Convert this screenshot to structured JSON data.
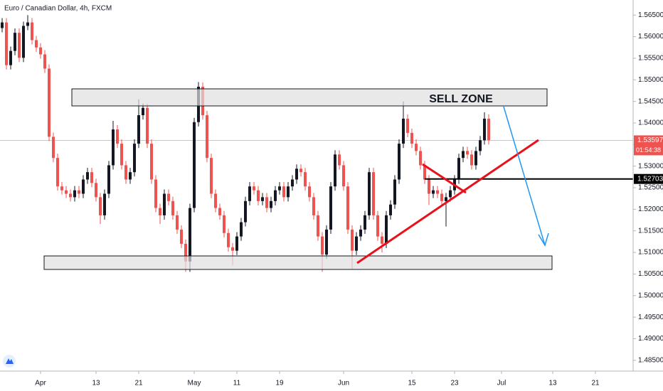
{
  "chart_data": {
    "type": "candlestick",
    "title": "Euro / Canadian Dollar, 4h, FXCM",
    "annotation": "SELL ZONE",
    "up_color": "#131722",
    "down_color": "#ef5350",
    "grid": false,
    "current_price": 1.53597,
    "countdown": "01:54:38",
    "horizontal_line": 1.52703,
    "ylim": [
      1.4825,
      1.5685
    ],
    "yticks": [
      {
        "value": 1.485,
        "label": "1.48500"
      },
      {
        "value": 1.49,
        "label": "1.49000"
      },
      {
        "value": 1.495,
        "label": "1.49500"
      },
      {
        "value": 1.5,
        "label": "1.50000"
      },
      {
        "value": 1.505,
        "label": "1.50500"
      },
      {
        "value": 1.51,
        "label": "1.51000"
      },
      {
        "value": 1.515,
        "label": "1.51500"
      },
      {
        "value": 1.52,
        "label": "1.52000"
      },
      {
        "value": 1.525,
        "label": "1.52500"
      },
      {
        "value": 1.53,
        "label": "1.53000"
      },
      {
        "value": 1.535,
        "label": "1.53500"
      },
      {
        "value": 1.54,
        "label": "1.54000"
      },
      {
        "value": 1.545,
        "label": "1.54500"
      },
      {
        "value": 1.55,
        "label": "1.55000"
      },
      {
        "value": 1.555,
        "label": "1.55500"
      },
      {
        "value": 1.56,
        "label": "1.56000"
      },
      {
        "value": 1.565,
        "label": "1.56500"
      }
    ],
    "categories": [
      null,
      null,
      null,
      null,
      null,
      null,
      null,
      null,
      null,
      "Apr",
      null,
      null,
      null,
      null,
      null,
      null,
      null,
      null,
      null,
      null,
      null,
      null,
      "13",
      null,
      null,
      null,
      null,
      null,
      null,
      null,
      null,
      null,
      "21",
      null,
      null,
      null,
      null,
      null,
      null,
      null,
      null,
      null,
      null,
      null,
      null,
      "May",
      null,
      null,
      null,
      null,
      null,
      null,
      null,
      null,
      null,
      "11",
      null,
      null,
      null,
      null,
      null,
      null,
      null,
      null,
      null,
      "19",
      null,
      null,
      null,
      null,
      null,
      null,
      null,
      null,
      null,
      null,
      null,
      null,
      null,
      null,
      "Jun",
      null,
      null,
      null,
      null,
      null,
      null,
      null,
      null,
      null,
      null,
      null,
      null,
      null,
      null,
      null,
      "15",
      null,
      null,
      null,
      null,
      null,
      null,
      null,
      null,
      null,
      "23",
      null,
      null,
      null,
      null,
      null,
      null,
      null,
      null,
      null,
      null,
      "Jul",
      null,
      null,
      null,
      null,
      null,
      null,
      null,
      null,
      null,
      null,
      null,
      "13",
      null,
      null,
      null,
      null,
      null,
      null,
      null,
      null,
      null,
      "21"
    ],
    "ohlc": [
      [
        1.562,
        1.5643,
        1.561,
        1.5633
      ],
      [
        1.5633,
        1.5643,
        1.5524,
        1.5534
      ],
      [
        1.5534,
        1.5577,
        1.5524,
        1.5567
      ],
      [
        1.5567,
        1.5619,
        1.5557,
        1.5609
      ],
      [
        1.5609,
        1.5619,
        1.5541,
        1.5551
      ],
      [
        1.5551,
        1.5635,
        1.5541,
        1.5625
      ],
      [
        1.5625,
        1.565,
        1.5615,
        1.5633
      ],
      [
        1.5633,
        1.5643,
        1.5582,
        1.5592
      ],
      [
        1.5592,
        1.5602,
        1.5565,
        1.5575
      ],
      [
        1.5575,
        1.5585,
        1.5549,
        1.5559
      ],
      [
        1.5559,
        1.5569,
        1.5516,
        1.5526
      ],
      [
        1.5526,
        1.5536,
        1.5358,
        1.5368
      ],
      [
        1.5368,
        1.5378,
        1.5309,
        1.5319
      ],
      [
        1.5319,
        1.5329,
        1.5243,
        1.5253
      ],
      [
        1.5253,
        1.5263,
        1.5234,
        1.5244
      ],
      [
        1.5244,
        1.5254,
        1.5226,
        1.5236
      ],
      [
        1.5236,
        1.5246,
        1.5218,
        1.5228
      ],
      [
        1.5228,
        1.5254,
        1.5218,
        1.5244
      ],
      [
        1.5244,
        1.5254,
        1.5226,
        1.5236
      ],
      [
        1.5236,
        1.5279,
        1.5226,
        1.5269
      ],
      [
        1.5269,
        1.5296,
        1.5259,
        1.5286
      ],
      [
        1.5286,
        1.5296,
        1.5251,
        1.5261
      ],
      [
        1.5261,
        1.5271,
        1.5218,
        1.5228
      ],
      [
        1.5228,
        1.5238,
        1.5166,
        1.5186
      ],
      [
        1.5186,
        1.5246,
        1.5176,
        1.5236
      ],
      [
        1.5236,
        1.5312,
        1.5226,
        1.5302
      ],
      [
        1.5302,
        1.5405,
        1.5292,
        1.5385
      ],
      [
        1.5385,
        1.5395,
        1.5342,
        1.5352
      ],
      [
        1.5352,
        1.5362,
        1.5292,
        1.5302
      ],
      [
        1.5302,
        1.5312,
        1.5259,
        1.5269
      ],
      [
        1.5269,
        1.5296,
        1.5259,
        1.5286
      ],
      [
        1.5286,
        1.5362,
        1.5276,
        1.5352
      ],
      [
        1.5352,
        1.5455,
        1.5342,
        1.5418
      ],
      [
        1.5418,
        1.5445,
        1.5408,
        1.5435
      ],
      [
        1.5435,
        1.5445,
        1.5342,
        1.5352
      ],
      [
        1.5352,
        1.5362,
        1.5259,
        1.5269
      ],
      [
        1.5269,
        1.5279,
        1.5193,
        1.5203
      ],
      [
        1.5203,
        1.5213,
        1.5166,
        1.5186
      ],
      [
        1.5186,
        1.5246,
        1.5176,
        1.5236
      ],
      [
        1.5236,
        1.5246,
        1.5209,
        1.5219
      ],
      [
        1.5219,
        1.5229,
        1.5176,
        1.5186
      ],
      [
        1.5186,
        1.5196,
        1.5143,
        1.5153
      ],
      [
        1.5153,
        1.5163,
        1.511,
        1.512
      ],
      [
        1.512,
        1.513,
        1.5055,
        1.5079
      ],
      [
        1.5079,
        1.5213,
        1.5055,
        1.5203
      ],
      [
        1.5203,
        1.5412,
        1.5193,
        1.5402
      ],
      [
        1.5402,
        1.5495,
        1.5392,
        1.5484
      ],
      [
        1.5484,
        1.5494,
        1.5408,
        1.5418
      ],
      [
        1.5418,
        1.5428,
        1.5309,
        1.5319
      ],
      [
        1.5319,
        1.5329,
        1.5226,
        1.5236
      ],
      [
        1.5236,
        1.5246,
        1.5193,
        1.5203
      ],
      [
        1.5203,
        1.5213,
        1.5176,
        1.5186
      ],
      [
        1.5186,
        1.5196,
        1.5135,
        1.5145
      ],
      [
        1.5145,
        1.5155,
        1.5102,
        1.5112
      ],
      [
        1.5112,
        1.5122,
        1.507,
        1.5104
      ],
      [
        1.5104,
        1.5147,
        1.5094,
        1.5137
      ],
      [
        1.5137,
        1.518,
        1.5127,
        1.517
      ],
      [
        1.517,
        1.5229,
        1.516,
        1.5219
      ],
      [
        1.5219,
        1.5263,
        1.5209,
        1.5253
      ],
      [
        1.5253,
        1.5263,
        1.5234,
        1.5244
      ],
      [
        1.5244,
        1.5254,
        1.5209,
        1.5219
      ],
      [
        1.5219,
        1.5238,
        1.5209,
        1.5228
      ],
      [
        1.5228,
        1.5238,
        1.5193,
        1.5203
      ],
      [
        1.5203,
        1.5229,
        1.5193,
        1.5219
      ],
      [
        1.5219,
        1.5254,
        1.5209,
        1.5244
      ],
      [
        1.5244,
        1.5263,
        1.5234,
        1.5253
      ],
      [
        1.5253,
        1.5263,
        1.5218,
        1.5228
      ],
      [
        1.5228,
        1.5263,
        1.5218,
        1.5253
      ],
      [
        1.5253,
        1.5279,
        1.5243,
        1.5269
      ],
      [
        1.5269,
        1.5304,
        1.5259,
        1.5294
      ],
      [
        1.5294,
        1.5304,
        1.5276,
        1.5286
      ],
      [
        1.5286,
        1.5296,
        1.5243,
        1.5253
      ],
      [
        1.5253,
        1.5263,
        1.5218,
        1.5228
      ],
      [
        1.5228,
        1.5238,
        1.5176,
        1.5186
      ],
      [
        1.5186,
        1.5196,
        1.5127,
        1.5137
      ],
      [
        1.5137,
        1.5147,
        1.5055,
        1.5095
      ],
      [
        1.5095,
        1.5163,
        1.5085,
        1.5153
      ],
      [
        1.5153,
        1.5263,
        1.5143,
        1.5253
      ],
      [
        1.5253,
        1.5337,
        1.5243,
        1.5327
      ],
      [
        1.5327,
        1.5337,
        1.5292,
        1.5302
      ],
      [
        1.5302,
        1.5312,
        1.5243,
        1.5253
      ],
      [
        1.5253,
        1.5263,
        1.5143,
        1.5153
      ],
      [
        1.5153,
        1.5163,
        1.506,
        1.5104
      ],
      [
        1.5104,
        1.5147,
        1.5094,
        1.5137
      ],
      [
        1.5137,
        1.5163,
        1.5127,
        1.5153
      ],
      [
        1.5153,
        1.5196,
        1.5143,
        1.5186
      ],
      [
        1.5186,
        1.5296,
        1.5176,
        1.5286
      ],
      [
        1.5286,
        1.5296,
        1.5176,
        1.5186
      ],
      [
        1.5186,
        1.5196,
        1.5127,
        1.5137
      ],
      [
        1.5137,
        1.5147,
        1.51,
        1.512
      ],
      [
        1.512,
        1.5196,
        1.511,
        1.5186
      ],
      [
        1.5186,
        1.5221,
        1.5176,
        1.5211
      ],
      [
        1.5211,
        1.5279,
        1.5201,
        1.5269
      ],
      [
        1.5269,
        1.5362,
        1.5259,
        1.5352
      ],
      [
        1.5352,
        1.545,
        1.5342,
        1.541
      ],
      [
        1.541,
        1.542,
        1.5367,
        1.5377
      ],
      [
        1.5377,
        1.5387,
        1.5342,
        1.5352
      ],
      [
        1.5352,
        1.5362,
        1.5325,
        1.5335
      ],
      [
        1.5335,
        1.5345,
        1.5292,
        1.5302
      ],
      [
        1.5302,
        1.5312,
        1.5259,
        1.5269
      ],
      [
        1.5269,
        1.5279,
        1.521,
        1.5236
      ],
      [
        1.5236,
        1.5254,
        1.5226,
        1.5244
      ],
      [
        1.5244,
        1.5254,
        1.5226,
        1.5236
      ],
      [
        1.5236,
        1.5246,
        1.5209,
        1.5219
      ],
      [
        1.5219,
        1.5238,
        1.516,
        1.5228
      ],
      [
        1.5228,
        1.5254,
        1.5218,
        1.5244
      ],
      [
        1.5244,
        1.5279,
        1.5234,
        1.5269
      ],
      [
        1.5269,
        1.5329,
        1.5259,
        1.5319
      ],
      [
        1.5319,
        1.5345,
        1.5309,
        1.5335
      ],
      [
        1.5335,
        1.5345,
        1.5317,
        1.5327
      ],
      [
        1.5327,
        1.5337,
        1.5292,
        1.5302
      ],
      [
        1.5302,
        1.5345,
        1.5292,
        1.5335
      ],
      [
        1.5335,
        1.537,
        1.5325,
        1.536
      ],
      [
        1.536,
        1.5425,
        1.535,
        1.541
      ],
      [
        1.541,
        1.542,
        1.535,
        1.536
      ],
      null,
      null,
      null,
      null,
      null,
      null,
      null,
      null,
      null,
      null,
      null,
      null,
      null,
      null,
      null,
      null,
      null,
      null,
      null,
      null,
      null,
      null,
      null,
      null,
      null
    ]
  }
}
